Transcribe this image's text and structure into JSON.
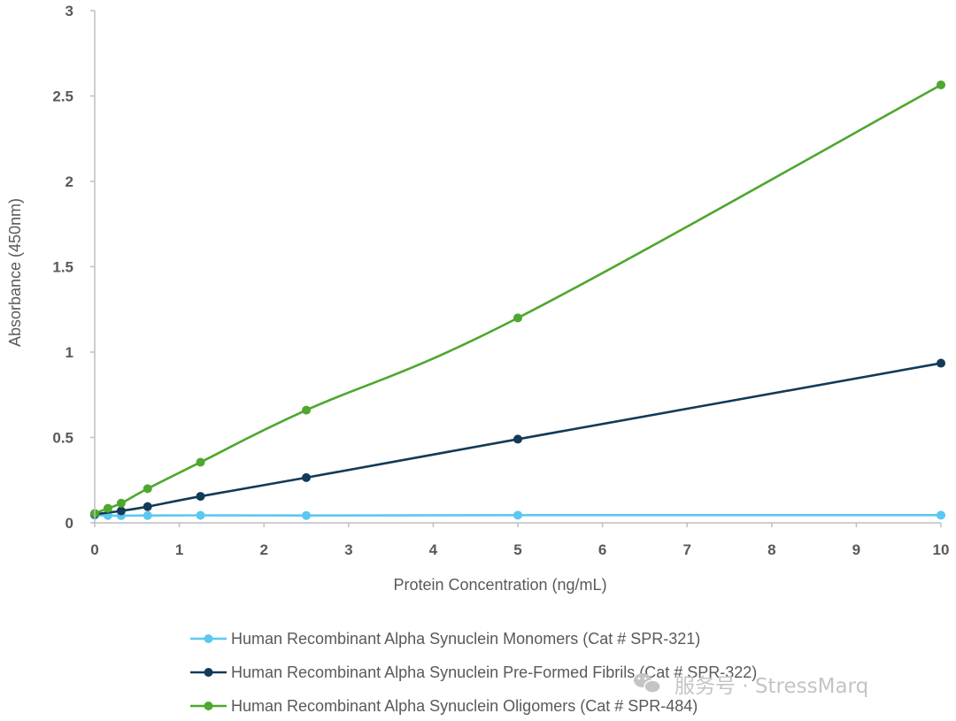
{
  "chart_data": {
    "type": "line",
    "title": "",
    "xlabel": "Protein Concentration (ng/mL)",
    "ylabel": "Absorbance (450nm)",
    "xlim": [
      0,
      10
    ],
    "ylim": [
      0,
      3
    ],
    "x_ticks": [
      "0",
      "1",
      "2",
      "3",
      "4",
      "5",
      "6",
      "7",
      "8",
      "9",
      "10"
    ],
    "y_ticks": [
      "0",
      "0.5",
      "1",
      "1.5",
      "2",
      "2.5",
      "3"
    ],
    "grid": false,
    "legend_position": "bottom",
    "series": [
      {
        "name": "Human Recombinant Alpha Synuclein Monomers (Cat # SPR-321)",
        "color": "#5bc8f0",
        "x": [
          0,
          0.156,
          0.3125,
          0.625,
          1.25,
          2.5,
          5,
          10
        ],
        "y": [
          0.045,
          0.043,
          0.042,
          0.043,
          0.044,
          0.043,
          0.045,
          0.045
        ]
      },
      {
        "name": "Human Recombinant Alpha Synuclein Pre-Formed Fibrils (Cat # SPR-322)",
        "color": "#133a57",
        "x": [
          0,
          0.3125,
          0.625,
          1.25,
          2.5,
          5,
          10
        ],
        "y": [
          0.05,
          0.07,
          0.095,
          0.155,
          0.265,
          0.49,
          0.935
        ]
      },
      {
        "name": "Human Recombinant Alpha Synuclein Oligomers (Cat # SPR-484)",
        "color": "#4ea72e",
        "x": [
          0,
          0.156,
          0.3125,
          0.625,
          1.25,
          2.5,
          5,
          10
        ],
        "y": [
          0.055,
          0.085,
          0.115,
          0.2,
          0.355,
          0.66,
          1.2,
          2.565
        ]
      }
    ]
  },
  "watermark": {
    "icon": "wechat-icon",
    "text": "服务号 · StressMarq",
    "color": "#c4c4c4"
  }
}
